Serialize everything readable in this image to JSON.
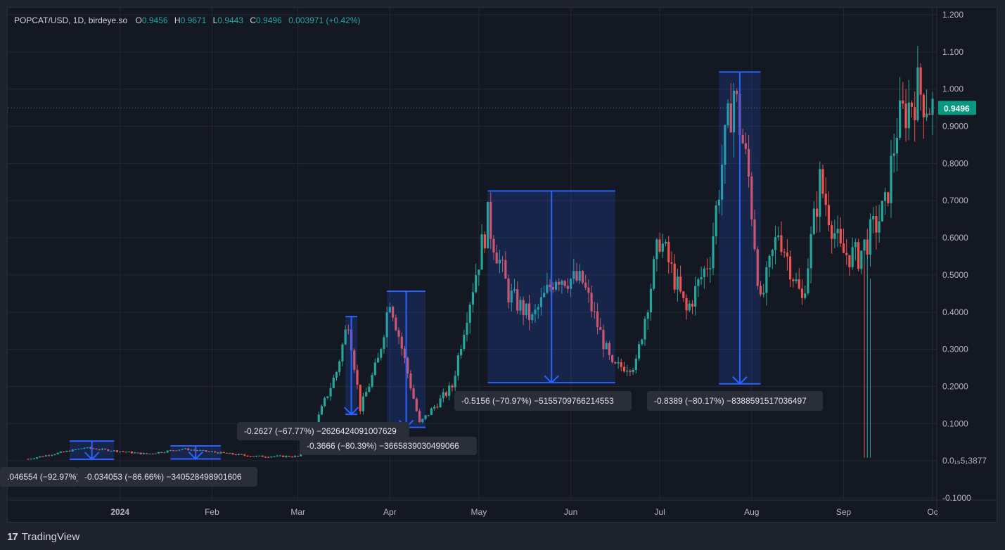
{
  "header": {
    "symbol": "POPCAT/USD, 1D, birdeye.so",
    "o_label": "O",
    "o_value": "0.9456",
    "h_label": "H",
    "h_value": "0.9671",
    "l_label": "L",
    "l_value": "0.9443",
    "c_label": "C",
    "c_value": "0.9496",
    "change": "0.003971 (+0.42%)"
  },
  "footer": {
    "brand": "TradingView"
  },
  "colors": {
    "up": "#26a69a",
    "down": "#ef5350",
    "measure": "#2962ff",
    "price_tag": "#089981",
    "bg": "#141823"
  },
  "chart_data": {
    "type": "candlestick",
    "title": "POPCAT/USD, 1D, birdeye.so",
    "ylim": [
      -0.1,
      1.2
    ],
    "y_ticks": [
      "1.200",
      "1.100",
      "1.000",
      "0.9000",
      "0.8000",
      "0.7000",
      "0.6000",
      "0.5000",
      "0.4000",
      "0.3000",
      "0.2000",
      "0.1000",
      "0.0₁₅5₁3877",
      "-0.1000"
    ],
    "y_tick_values": [
      1.2,
      1.1,
      1.0,
      0.9,
      0.8,
      0.7,
      0.6,
      0.5,
      0.4,
      0.3,
      0.2,
      0.1,
      0.0,
      -0.1
    ],
    "x_ticks": [
      "2024",
      "Feb",
      "Mar",
      "Apr",
      "May",
      "Jun",
      "Jul",
      "Aug",
      "Sep",
      "Oc"
    ],
    "x_tick_dates": [
      "2024-01-01",
      "2024-02-01",
      "2024-03-01",
      "2024-04-01",
      "2024-05-01",
      "2024-06-01",
      "2024-07-01",
      "2024-08-01",
      "2024-09-01",
      "2024-10-01"
    ],
    "date_range": [
      "2023-12-01",
      "2024-10-01"
    ],
    "last_price": 0.9496,
    "last_price_label": "0.9496",
    "key_points": [
      {
        "date": "2023-12-01",
        "close": 0.005
      },
      {
        "date": "2023-12-20",
        "close": 0.035
      },
      {
        "date": "2024-01-10",
        "close": 0.018
      },
      {
        "date": "2024-01-22",
        "close": 0.032
      },
      {
        "date": "2024-02-15",
        "close": 0.012
      },
      {
        "date": "2024-03-01",
        "close": 0.012
      },
      {
        "date": "2024-03-08",
        "close": 0.12
      },
      {
        "date": "2024-03-14",
        "close": 0.24
      },
      {
        "date": "2024-03-18",
        "close": 0.38
      },
      {
        "date": "2024-03-22",
        "close": 0.14
      },
      {
        "date": "2024-03-28",
        "close": 0.27
      },
      {
        "date": "2024-04-01",
        "close": 0.44
      },
      {
        "date": "2024-04-11",
        "close": 0.1
      },
      {
        "date": "2024-04-22",
        "close": 0.2
      },
      {
        "date": "2024-04-27",
        "close": 0.4
      },
      {
        "date": "2024-05-04",
        "close": 0.65
      },
      {
        "date": "2024-05-11",
        "close": 0.45
      },
      {
        "date": "2024-05-19",
        "close": 0.38
      },
      {
        "date": "2024-05-27",
        "close": 0.5
      },
      {
        "date": "2024-06-05",
        "close": 0.48
      },
      {
        "date": "2024-06-15",
        "close": 0.25
      },
      {
        "date": "2024-06-23",
        "close": 0.26
      },
      {
        "date": "2024-07-01",
        "close": 0.6
      },
      {
        "date": "2024-07-10",
        "close": 0.4
      },
      {
        "date": "2024-07-18",
        "close": 0.55
      },
      {
        "date": "2024-07-22",
        "close": 0.8
      },
      {
        "date": "2024-07-26",
        "close": 1.0
      },
      {
        "date": "2024-07-31",
        "close": 0.76
      },
      {
        "date": "2024-08-04",
        "close": 0.42
      },
      {
        "date": "2024-08-10",
        "close": 0.62
      },
      {
        "date": "2024-08-18",
        "close": 0.43
      },
      {
        "date": "2024-08-24",
        "close": 0.75
      },
      {
        "date": "2024-08-31",
        "close": 0.56
      },
      {
        "date": "2024-09-06",
        "close": 0.55
      },
      {
        "date": "2024-09-15",
        "close": 0.68
      },
      {
        "date": "2024-09-19",
        "close": 0.9
      },
      {
        "date": "2024-09-26",
        "close": 1.0
      },
      {
        "date": "2024-10-01",
        "close": 0.9496
      }
    ],
    "price_range_measurements": [
      {
        "label": ".046554 (−92.97%)",
        "start": "2023-12-15",
        "end": "2023-12-30",
        "high": 0.053,
        "low": 0.004
      },
      {
        "label": "-0.034053 (−86.66%) −340528498901606",
        "start": "2024-01-18",
        "end": "2024-02-04",
        "high": 0.04,
        "low": 0.005
      },
      {
        "label": "-0.2627 (−67.77%) −2626424091007629",
        "start": "2024-03-17",
        "end": "2024-03-21",
        "high": 0.388,
        "low": 0.125
      },
      {
        "label": "-0.3666 (−80.39%) −3665839030499066",
        "start": "2024-03-31",
        "end": "2024-04-13",
        "high": 0.456,
        "low": 0.09
      },
      {
        "label": "-0.5156 (−70.97%) −5155709766214553",
        "start": "2024-05-04",
        "end": "2024-06-16",
        "high": 0.726,
        "low": 0.21
      },
      {
        "label": "-0.8389 (−80.17%) −8388591517036497",
        "start": "2024-07-21",
        "end": "2024-08-04",
        "high": 1.046,
        "low": 0.207
      }
    ]
  }
}
